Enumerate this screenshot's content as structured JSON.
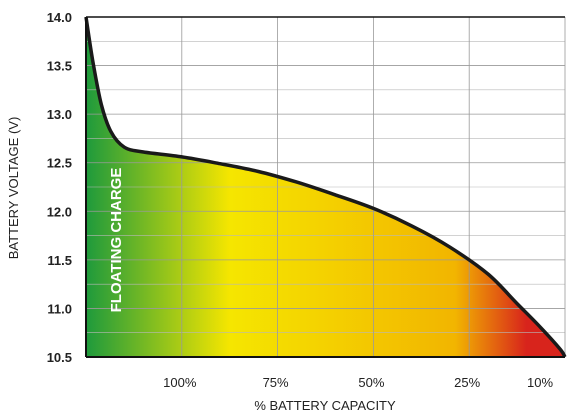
{
  "chart_data": {
    "type": "area",
    "xlabel": "% BATTERY CAPACITY",
    "ylabel": "BATTERY VOLTAGE (V)",
    "ylim": [
      10.5,
      14.0
    ],
    "yticks": [
      "10.5",
      "11.0",
      "11.5",
      "12.0",
      "12.5",
      "13.0",
      "13.5",
      "14.0"
    ],
    "xtick_labels": [
      "100%",
      "75%",
      "50%",
      "25%",
      "10%"
    ],
    "grid": true,
    "annotation": "FLOATING CHARGE",
    "gradient_colors": [
      "#1e9a3c",
      "#f5e600",
      "#f2b500",
      "#d8241c"
    ],
    "curve": {
      "x_scale_note_hidden": true,
      "points": [
        [
          0,
          14.0
        ],
        [
          0.07,
          13.55
        ],
        [
          0.16,
          13.1
        ],
        [
          0.26,
          12.82
        ],
        [
          0.4,
          12.66
        ],
        [
          0.6,
          12.61
        ],
        [
          1.0,
          12.56
        ],
        [
          1.4,
          12.49
        ],
        [
          1.8,
          12.41
        ],
        [
          2.2,
          12.3
        ],
        [
          2.6,
          12.17
        ],
        [
          3.0,
          12.03
        ],
        [
          3.4,
          11.85
        ],
        [
          3.8,
          11.63
        ],
        [
          4.2,
          11.35
        ],
        [
          4.5,
          11.05
        ],
        [
          4.75,
          10.8
        ],
        [
          4.95,
          10.58
        ],
        [
          5.0,
          10.5
        ]
      ]
    }
  }
}
